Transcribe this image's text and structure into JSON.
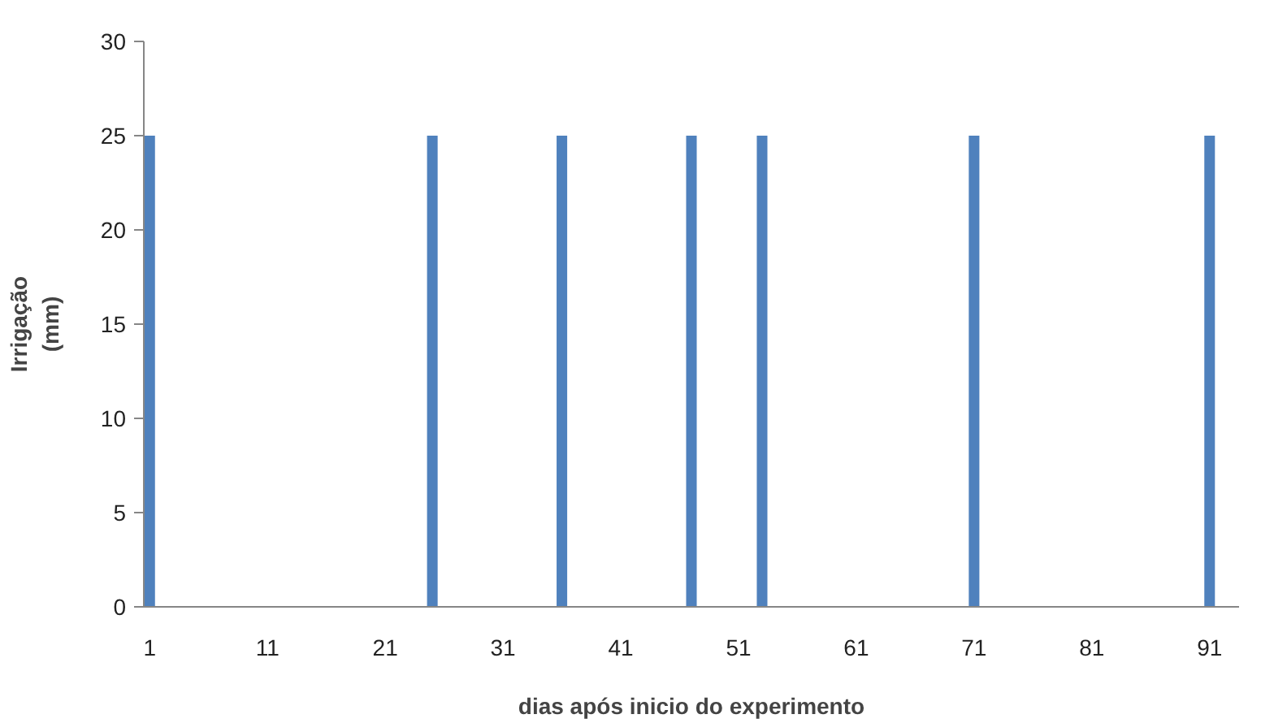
{
  "chart_data": {
    "type": "bar",
    "xlabel": "dias após inicio do experimento",
    "ylabel": "Irrigação\n(mm)",
    "categories": [
      "1",
      null,
      null,
      null,
      null,
      null,
      null,
      null,
      null,
      null,
      "11",
      null,
      null,
      null,
      null,
      null,
      null,
      null,
      null,
      null,
      "21",
      null,
      null,
      null,
      null,
      null,
      null,
      null,
      null,
      null,
      "31",
      null,
      null,
      null,
      null,
      null,
      null,
      null,
      null,
      null,
      "41",
      null,
      null,
      null,
      null,
      null,
      null,
      null,
      null,
      null,
      "51",
      null,
      null,
      null,
      null,
      null,
      null,
      null,
      null,
      null,
      "61",
      null,
      null,
      null,
      null,
      null,
      null,
      null,
      null,
      null,
      "71",
      null,
      null,
      null,
      null,
      null,
      null,
      null,
      null,
      null,
      "81",
      null,
      null,
      null,
      null,
      null,
      null,
      null,
      null,
      null,
      "91",
      null,
      null
    ],
    "values": [
      25,
      0,
      0,
      0,
      0,
      0,
      0,
      0,
      0,
      0,
      0,
      0,
      0,
      0,
      0,
      0,
      0,
      0,
      0,
      0,
      0,
      0,
      0,
      0,
      25,
      0,
      0,
      0,
      0,
      0,
      0,
      0,
      0,
      0,
      0,
      25,
      0,
      0,
      0,
      0,
      0,
      0,
      0,
      0,
      0,
      0,
      25,
      0,
      0,
      0,
      0,
      0,
      25,
      0,
      0,
      0,
      0,
      0,
      0,
      0,
      0,
      0,
      0,
      0,
      0,
      0,
      0,
      0,
      0,
      0,
      25,
      0,
      0,
      0,
      0,
      0,
      0,
      0,
      0,
      0,
      0,
      0,
      0,
      0,
      0,
      0,
      0,
      0,
      0,
      0,
      25,
      0,
      0
    ],
    "color": "#4f81bd",
    "ylim": [
      0,
      30
    ],
    "yticks": [
      0,
      5,
      10,
      15,
      20,
      25,
      30
    ],
    "grid": false
  }
}
